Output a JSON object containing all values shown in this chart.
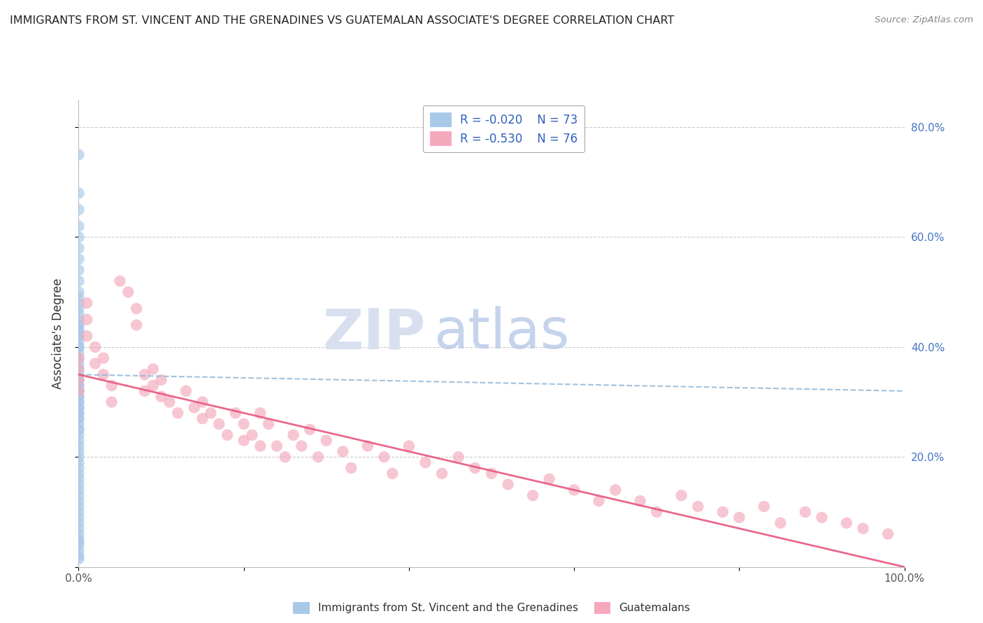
{
  "title": "IMMIGRANTS FROM ST. VINCENT AND THE GRENADINES VS GUATEMALAN ASSOCIATE'S DEGREE CORRELATION CHART",
  "source": "Source: ZipAtlas.com",
  "ylabel": "Associate's Degree",
  "xlim": [
    0.0,
    1.0
  ],
  "ylim": [
    0.0,
    0.85
  ],
  "x_ticks": [
    0.0,
    0.2,
    0.4,
    0.6,
    0.8,
    1.0
  ],
  "x_tick_labels": [
    "0.0%",
    "",
    "",
    "",
    "",
    "100.0%"
  ],
  "y_ticks": [
    0.0,
    0.2,
    0.4,
    0.6,
    0.8
  ],
  "y_tick_labels": [
    "",
    "",
    "",
    "",
    ""
  ],
  "right_y_ticks": [
    0.2,
    0.4,
    0.6,
    0.8
  ],
  "right_y_tick_labels": [
    "20.0%",
    "40.0%",
    "60.0%",
    "80.0%"
  ],
  "blue_r": "-0.020",
  "blue_n": "73",
  "pink_r": "-0.530",
  "pink_n": "76",
  "blue_color": "#a8c8e8",
  "pink_color": "#f4a8bc",
  "blue_line_color": "#90b8d8",
  "pink_line_color": "#e85880",
  "legend_r_color": "#3060c0",
  "legend_n_color": "#3060c0",
  "blue_pts_x": [
    0.0,
    0.0,
    0.0,
    0.0,
    0.0,
    0.0,
    0.0,
    0.0,
    0.0,
    0.0,
    0.0,
    0.0,
    0.0,
    0.0,
    0.0,
    0.0,
    0.0,
    0.0,
    0.0,
    0.0,
    0.0,
    0.0,
    0.0,
    0.0,
    0.0,
    0.0,
    0.0,
    0.0,
    0.0,
    0.0,
    0.0,
    0.0,
    0.0,
    0.0,
    0.0,
    0.0,
    0.0,
    0.0,
    0.0,
    0.0,
    0.0,
    0.0,
    0.0,
    0.0,
    0.0,
    0.0,
    0.0,
    0.0,
    0.0,
    0.0,
    0.0,
    0.0,
    0.0,
    0.0,
    0.0,
    0.0,
    0.0,
    0.0,
    0.0,
    0.0,
    0.0,
    0.0,
    0.0,
    0.0,
    0.0,
    0.0,
    0.0,
    0.0,
    0.0,
    0.0,
    0.0,
    0.0,
    0.0
  ],
  "blue_pts_y": [
    0.75,
    0.68,
    0.65,
    0.62,
    0.6,
    0.58,
    0.56,
    0.54,
    0.52,
    0.5,
    0.49,
    0.48,
    0.47,
    0.46,
    0.45,
    0.44,
    0.44,
    0.43,
    0.43,
    0.42,
    0.42,
    0.41,
    0.4,
    0.4,
    0.39,
    0.38,
    0.37,
    0.36,
    0.35,
    0.34,
    0.34,
    0.33,
    0.33,
    0.32,
    0.32,
    0.31,
    0.31,
    0.3,
    0.3,
    0.29,
    0.29,
    0.28,
    0.28,
    0.27,
    0.27,
    0.26,
    0.25,
    0.25,
    0.24,
    0.23,
    0.22,
    0.21,
    0.2,
    0.19,
    0.18,
    0.17,
    0.16,
    0.15,
    0.14,
    0.13,
    0.12,
    0.11,
    0.1,
    0.09,
    0.08,
    0.07,
    0.06,
    0.05,
    0.045,
    0.04,
    0.03,
    0.02,
    0.015
  ],
  "pink_pts_x": [
    0.0,
    0.0,
    0.0,
    0.0,
    0.01,
    0.01,
    0.01,
    0.02,
    0.02,
    0.03,
    0.03,
    0.04,
    0.04,
    0.05,
    0.06,
    0.07,
    0.07,
    0.08,
    0.08,
    0.09,
    0.09,
    0.1,
    0.1,
    0.11,
    0.12,
    0.13,
    0.14,
    0.15,
    0.15,
    0.16,
    0.17,
    0.18,
    0.19,
    0.2,
    0.2,
    0.21,
    0.22,
    0.22,
    0.23,
    0.24,
    0.25,
    0.26,
    0.27,
    0.28,
    0.29,
    0.3,
    0.32,
    0.33,
    0.35,
    0.37,
    0.38,
    0.4,
    0.42,
    0.44,
    0.46,
    0.48,
    0.5,
    0.52,
    0.55,
    0.57,
    0.6,
    0.63,
    0.65,
    0.68,
    0.7,
    0.73,
    0.75,
    0.78,
    0.8,
    0.83,
    0.85,
    0.88,
    0.9,
    0.93,
    0.95,
    0.98
  ],
  "pink_pts_y": [
    0.38,
    0.36,
    0.34,
    0.32,
    0.48,
    0.45,
    0.42,
    0.4,
    0.37,
    0.38,
    0.35,
    0.33,
    0.3,
    0.52,
    0.5,
    0.47,
    0.44,
    0.35,
    0.32,
    0.36,
    0.33,
    0.34,
    0.31,
    0.3,
    0.28,
    0.32,
    0.29,
    0.27,
    0.3,
    0.28,
    0.26,
    0.24,
    0.28,
    0.26,
    0.23,
    0.24,
    0.22,
    0.28,
    0.26,
    0.22,
    0.2,
    0.24,
    0.22,
    0.25,
    0.2,
    0.23,
    0.21,
    0.18,
    0.22,
    0.2,
    0.17,
    0.22,
    0.19,
    0.17,
    0.2,
    0.18,
    0.17,
    0.15,
    0.13,
    0.16,
    0.14,
    0.12,
    0.14,
    0.12,
    0.1,
    0.13,
    0.11,
    0.1,
    0.09,
    0.11,
    0.08,
    0.1,
    0.09,
    0.08,
    0.07,
    0.06
  ],
  "blue_trend": [
    0.35,
    0.32
  ],
  "pink_trend": [
    0.35,
    0.0
  ],
  "watermark_zip_color": "#d8e0f0",
  "watermark_atlas_color": "#b8c8e8"
}
